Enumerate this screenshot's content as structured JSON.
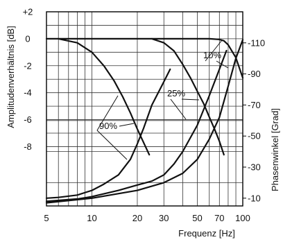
{
  "chart_data": {
    "type": "line",
    "title": "",
    "xlabel": "Frequenz [Hz]",
    "ylabel": "Amplitudenverhältnis [dB]",
    "y2label": "Phasenwinkel [Grad]",
    "x_scale": "log",
    "xlim": [
      5,
      100
    ],
    "ylim": [
      -12.4,
      2
    ],
    "y2lim": [
      -5,
      -130
    ],
    "grid": true,
    "x_ticks": [
      "5",
      "10",
      "20",
      "30",
      "50",
      "70",
      "100"
    ],
    "y_ticks": [
      "+2",
      "0",
      "-2",
      "-4",
      "-6",
      "-8"
    ],
    "y2_ticks": [
      "-110",
      "-90",
      "-70",
      "-50",
      "-30",
      "-10"
    ],
    "series": [
      {
        "name": "10%",
        "kind": "amplitude",
        "x": [
          5,
          10,
          20,
          30,
          40,
          50,
          60,
          70,
          75,
          80,
          90,
          100
        ],
        "y": [
          0,
          0,
          0,
          0,
          0,
          0,
          0,
          -0.05,
          -0.15,
          -0.45,
          -1.4,
          -2.9
        ]
      },
      {
        "name": "25%",
        "kind": "amplitude",
        "x": [
          25,
          30,
          35,
          40,
          45,
          50,
          55,
          60,
          65,
          70,
          75
        ],
        "y": [
          0,
          -0.3,
          -0.9,
          -1.9,
          -2.9,
          -3.9,
          -4.8,
          -5.8,
          -6.7,
          -7.6,
          -8.6
        ]
      },
      {
        "name": "90%",
        "kind": "amplitude",
        "x": [
          6,
          8,
          10,
          12,
          14,
          16,
          18,
          20,
          24
        ],
        "y": [
          0,
          -0.3,
          -1.0,
          -2.0,
          -3.1,
          -4.3,
          -5.5,
          -6.7,
          -8.6
        ]
      },
      {
        "name": "90%",
        "kind": "phase",
        "x": [
          5,
          6,
          8,
          10,
          12,
          15,
          18,
          20,
          22,
          25,
          30,
          33
        ],
        "y2": [
          -10,
          -10.5,
          -12,
          -15,
          -19,
          -25,
          -35,
          -45,
          -55,
          -70,
          -85,
          -93
        ]
      },
      {
        "name": "25%",
        "kind": "phase",
        "x": [
          5,
          8,
          10,
          15,
          20,
          25,
          30,
          35,
          40,
          50,
          60,
          70,
          78
        ],
        "y2": [
          -8,
          -9.5,
          -11,
          -15,
          -18.5,
          -21,
          -25,
          -32,
          -40,
          -57,
          -76,
          -93,
          -105
        ]
      },
      {
        "name": "10%",
        "kind": "phase",
        "x": [
          5,
          10,
          20,
          30,
          40,
          50,
          60,
          70,
          80,
          90,
          100
        ],
        "y2": [
          -7,
          -10,
          -15,
          -20,
          -26,
          -35,
          -48,
          -62,
          -82,
          -100,
          -112
        ]
      }
    ],
    "annotations": [
      "10%",
      "25%",
      "90%"
    ]
  }
}
